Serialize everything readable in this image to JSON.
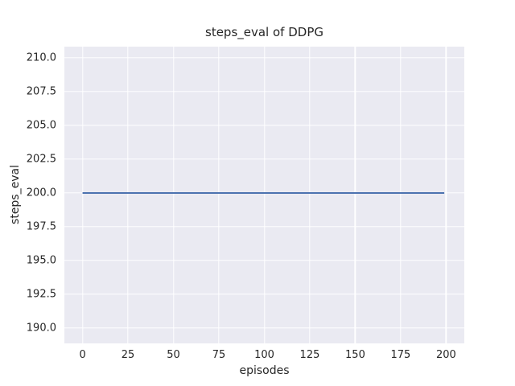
{
  "figure": {
    "background": "#ffffff"
  },
  "chart_data": {
    "type": "line",
    "title": "steps_eval of DDPG",
    "xlabel": "episodes",
    "ylabel": "steps_eval",
    "xlim": [
      -10,
      210
    ],
    "ylim": [
      188.87,
      210.83
    ],
    "xticks": [
      0,
      25,
      50,
      75,
      100,
      125,
      150,
      175,
      200
    ],
    "xtick_labels": [
      "0",
      "25",
      "50",
      "75",
      "100",
      "125",
      "150",
      "175",
      "200"
    ],
    "yticks": [
      190.0,
      192.5,
      195.0,
      197.5,
      200.0,
      202.5,
      205.0,
      207.5,
      210.0
    ],
    "ytick_labels": [
      "190.0",
      "192.5",
      "195.0",
      "197.5",
      "200.0",
      "202.5",
      "205.0",
      "207.5",
      "210.0"
    ],
    "grid": true,
    "legend_position": "none",
    "style": "seaborn-darkgrid",
    "plot_bg_color": "#eaeaf2",
    "grid_color": "#ffffff",
    "text_color": "#262626",
    "series": [
      {
        "name": "DDPG steps_eval",
        "color": "#4c72b0",
        "line_width": 2,
        "x": [
          0,
          199
        ],
        "y": [
          200,
          200
        ],
        "note": "constant value 200 across all episodes"
      }
    ]
  }
}
